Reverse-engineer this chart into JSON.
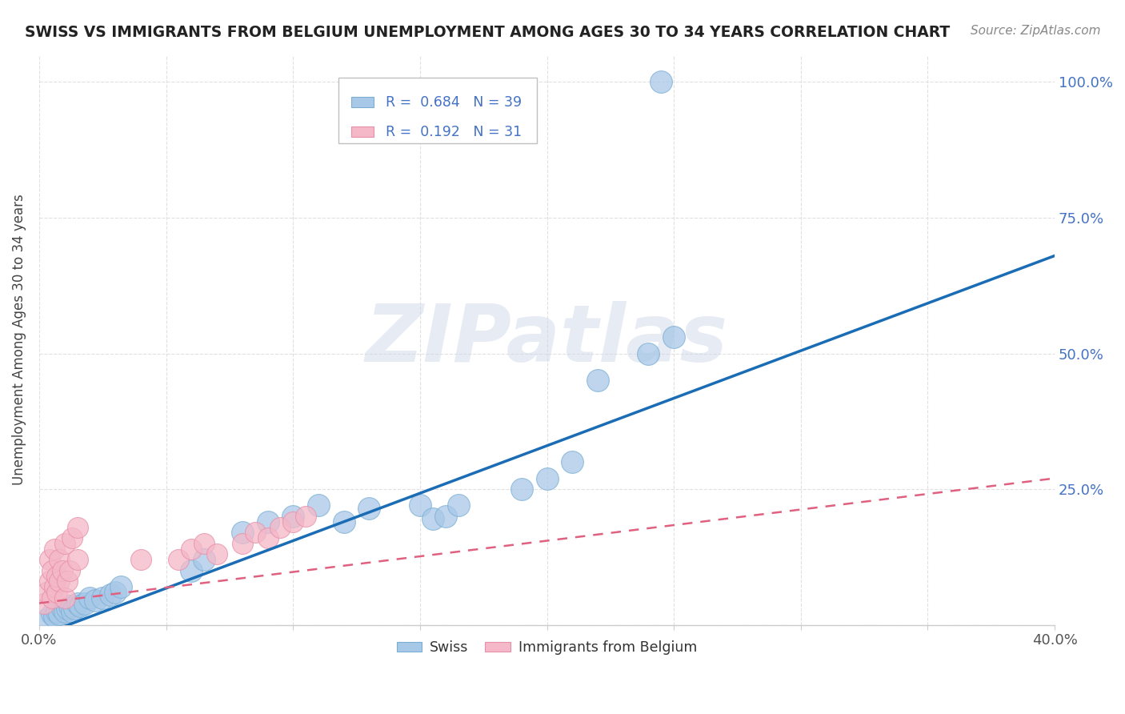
{
  "title": "SWISS VS IMMIGRANTS FROM BELGIUM UNEMPLOYMENT AMONG AGES 30 TO 34 YEARS CORRELATION CHART",
  "source": "Source: ZipAtlas.com",
  "ylabel": "Unemployment Among Ages 30 to 34 years",
  "x_min": 0.0,
  "x_max": 0.4,
  "y_min": 0.0,
  "y_max": 1.05,
  "blue_R": 0.684,
  "blue_N": 39,
  "pink_R": 0.192,
  "pink_N": 31,
  "blue_color": "#a8c8e8",
  "blue_edge_color": "#7aafd4",
  "blue_line_color": "#1a6db5",
  "pink_color": "#f4b8c8",
  "pink_edge_color": "#e890a8",
  "pink_line_color": "#e06080",
  "watermark": "ZIPatlas",
  "legend_swiss": "Swiss",
  "legend_immigrants": "Immigrants from Belgium",
  "blue_line_x0": 0.0,
  "blue_line_y0": -0.02,
  "blue_line_x1": 0.4,
  "blue_line_y1": 0.68,
  "pink_line_x0": 0.0,
  "pink_line_y0": 0.04,
  "pink_line_x1": 0.4,
  "pink_line_y1": 0.27,
  "blue_scatter_x": [
    0.003,
    0.005,
    0.006,
    0.007,
    0.008,
    0.009,
    0.01,
    0.011,
    0.012,
    0.013,
    0.014,
    0.015,
    0.016,
    0.018,
    0.02,
    0.022,
    0.025,
    0.028,
    0.03,
    0.032,
    0.06,
    0.065,
    0.08,
    0.09,
    0.1,
    0.11,
    0.12,
    0.13,
    0.15,
    0.155,
    0.16,
    0.165,
    0.19,
    0.2,
    0.21,
    0.22,
    0.24,
    0.25,
    0.245
  ],
  "blue_scatter_y": [
    0.01,
    0.02,
    0.015,
    0.025,
    0.02,
    0.03,
    0.025,
    0.03,
    0.035,
    0.025,
    0.03,
    0.04,
    0.035,
    0.04,
    0.05,
    0.045,
    0.05,
    0.055,
    0.06,
    0.07,
    0.1,
    0.12,
    0.17,
    0.19,
    0.2,
    0.22,
    0.19,
    0.215,
    0.22,
    0.195,
    0.2,
    0.22,
    0.25,
    0.27,
    0.3,
    0.45,
    0.5,
    0.53,
    1.0
  ],
  "pink_scatter_x": [
    0.002,
    0.003,
    0.004,
    0.004,
    0.005,
    0.005,
    0.006,
    0.006,
    0.007,
    0.007,
    0.008,
    0.008,
    0.009,
    0.01,
    0.01,
    0.011,
    0.012,
    0.013,
    0.015,
    0.015,
    0.04,
    0.055,
    0.06,
    0.065,
    0.07,
    0.08,
    0.085,
    0.09,
    0.095,
    0.1,
    0.105
  ],
  "pink_scatter_y": [
    0.04,
    0.06,
    0.08,
    0.12,
    0.05,
    0.1,
    0.07,
    0.14,
    0.06,
    0.09,
    0.08,
    0.12,
    0.1,
    0.05,
    0.15,
    0.08,
    0.1,
    0.16,
    0.12,
    0.18,
    0.12,
    0.12,
    0.14,
    0.15,
    0.13,
    0.15,
    0.17,
    0.16,
    0.18,
    0.19,
    0.2
  ],
  "grid_color": "#e0e0e0",
  "background_color": "#ffffff",
  "title_color": "#222222",
  "source_color": "#888888",
  "axis_label_color": "#444444",
  "tick_color": "#555555",
  "right_tick_color": "#4472c4"
}
